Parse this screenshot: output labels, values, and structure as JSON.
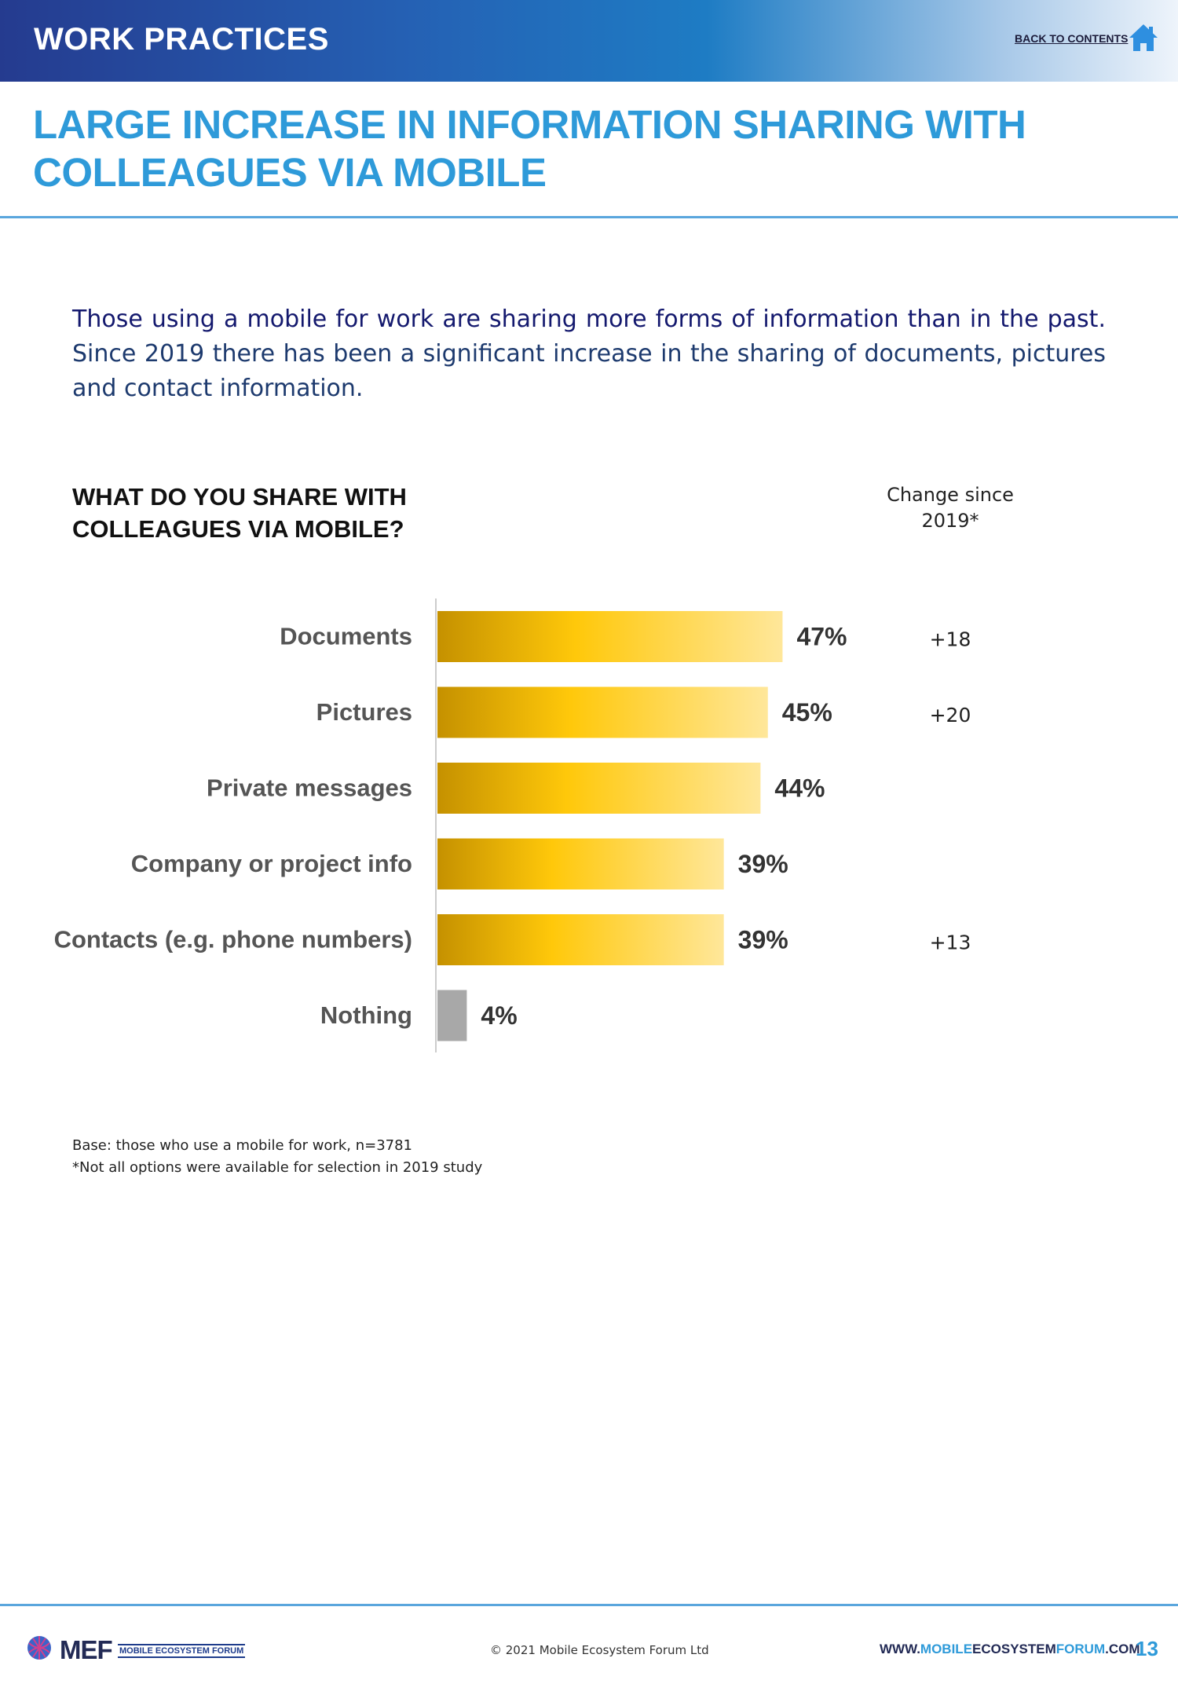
{
  "header": {
    "section": "WORK PRACTICES",
    "back_link": "BACK TO CONTENTS",
    "home_icon": "home-icon",
    "band_colors": [
      "#253b8f",
      "#1e7cc4",
      "#eef4fb"
    ]
  },
  "title": {
    "line1": "LARGE INCREASE IN INFORMATION SHARING WITH",
    "line2": "COLLEAGUES VIA MOBILE"
  },
  "intro": {
    "lead": "Those using a mobile for work are sharing more forms of information than in the past.",
    "rest": " Since 2019 there has been a significant increase in the sharing of documents, pictures and contact information."
  },
  "chart_question": {
    "line1": "WHAT DO YOU SHARE WITH",
    "line2": "COLLEAGUES VIA MOBILE?"
  },
  "change_header": {
    "line1": "Change since",
    "line2": "2019*"
  },
  "chart_data": {
    "type": "bar",
    "orientation": "horizontal",
    "title": "WHAT DO YOU SHARE WITH COLLEAGUES VIA MOBILE?",
    "categories": [
      "Documents",
      "Pictures",
      "Private messages",
      "Company or project info",
      "Contacts (e.g. phone numbers)",
      "Nothing"
    ],
    "values": [
      47,
      45,
      44,
      39,
      39,
      4
    ],
    "value_labels": [
      "47%",
      "45%",
      "44%",
      "39%",
      "39%",
      "4%"
    ],
    "change_since_2019": [
      "+18",
      "+20",
      "",
      "",
      "+13",
      ""
    ],
    "unit": "%",
    "xlim": [
      0,
      100
    ],
    "grid": false,
    "colors": {
      "bar_gradient": [
        "#c59100",
        "#ffc80a",
        "#ffe79a"
      ],
      "nothing_bar": "#a8a8a8",
      "category_text": "#555555",
      "value_text": "#333333"
    }
  },
  "notes": {
    "base": "Base: those who use a mobile for work, n=3781",
    "footnote": "*Not all options were available for selection in 2019 study"
  },
  "footer": {
    "logo_text": "MEF",
    "logo_sub": "MOBILE ECOSYSTEM FORUM",
    "copyright": "© 2021 Mobile Ecosystem Forum Ltd",
    "website_pre": "WWW.",
    "website_hl1": "MOBILE",
    "website_mid": "ECOSYSTEM",
    "website_hl2": "FORUM",
    "website_post": ".COM",
    "page_number": "13"
  }
}
